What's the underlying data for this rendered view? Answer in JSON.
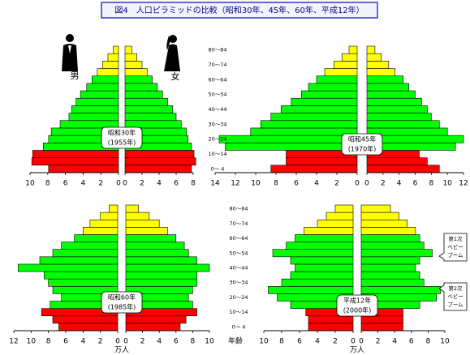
{
  "title": "図4　人口ピラミッドの比較（昭和30年、45年、60年、平成12年）",
  "chart_data": [
    {
      "type": "pyramid",
      "era_label": [
        "昭和30年",
        "(1955年)"
      ],
      "male_label": "男",
      "female_label": "女",
      "bar_colors": [
        "#ff0000",
        "#ff0000",
        "#ff0000",
        "#00ff00",
        "#00ff00",
        "#00ff00",
        "#00ff00",
        "#00ff00",
        "#00ff00",
        "#00ff00",
        "#00ff00",
        "#00ff00",
        "#00ff00",
        "#ffff00",
        "#ffff00",
        "#ffff00",
        "#ffff00"
      ],
      "male": {
        "values": [
          7.9,
          9.8,
          9.7,
          8.5,
          7.9,
          7.6,
          6.6,
          5.6,
          5.3,
          4.8,
          4.3,
          3.6,
          3.0,
          2.4,
          1.8,
          1.2,
          0.6
        ],
        "xlim": [
          0,
          10
        ],
        "xticks": [
          10,
          8,
          6,
          4,
          2,
          0
        ]
      },
      "female": {
        "values": [
          7.8,
          8.3,
          8.1,
          7.8,
          7.4,
          7.2,
          6.6,
          6.0,
          5.6,
          5.0,
          4.4,
          3.8,
          3.2,
          2.6,
          2.0,
          1.4,
          0.8
        ],
        "xlim": [
          0,
          8
        ],
        "xticks": [
          0,
          2,
          4,
          6,
          8
        ]
      }
    },
    {
      "type": "pyramid",
      "era_label": [
        "昭和45年",
        "(1970年)"
      ],
      "categories": [
        "0～ 4",
        null,
        "10～14",
        null,
        "20～24",
        null,
        "30～34",
        null,
        "40～44",
        null,
        "50～54",
        null,
        "60～64",
        null,
        "70～74",
        null,
        "80～84"
      ],
      "bar_colors": [
        "#ff0000",
        "#ff0000",
        "#ff0000",
        "#00ff00",
        "#00ff00",
        "#00ff00",
        "#00ff00",
        "#00ff00",
        "#00ff00",
        "#00ff00",
        "#00ff00",
        "#00ff00",
        "#00ff00",
        "#ffff00",
        "#ffff00",
        "#ffff00",
        "#ffff00"
      ],
      "male": {
        "values": [
          8.5,
          7.0,
          7.0,
          13.0,
          13.6,
          10.5,
          9.5,
          8.5,
          7.5,
          6.5,
          5.5,
          4.8,
          4.0,
          3.2,
          2.3,
          1.5,
          0.8
        ],
        "xlim": [
          0,
          14
        ],
        "xticks": [
          14,
          12,
          10,
          8,
          6,
          4,
          2,
          0
        ]
      },
      "female": {
        "values": [
          9.0,
          7.5,
          6.5,
          11.0,
          12.0,
          10.0,
          9.0,
          8.0,
          7.5,
          6.8,
          6.0,
          5.2,
          4.5,
          3.5,
          2.7,
          1.8,
          1.0
        ],
        "xlim": [
          0,
          12
        ],
        "xticks": [
          0,
          2,
          4,
          6,
          8,
          10,
          12
        ]
      }
    },
    {
      "type": "pyramid",
      "era_label": [
        "昭和60年",
        "(1985年)"
      ],
      "xlabel": "万人",
      "bar_colors": [
        "#ff0000",
        "#ff0000",
        "#ff0000",
        "#00ff00",
        "#00ff00",
        "#00ff00",
        "#00ff00",
        "#00ff00",
        "#00ff00",
        "#00ff00",
        "#00ff00",
        "#00ff00",
        "#00ff00",
        "#ffff00",
        "#ffff00",
        "#ffff00",
        "#ffff00"
      ],
      "male": {
        "values": [
          6.8,
          7.5,
          8.8,
          7.8,
          6.5,
          7.5,
          8.0,
          8.5,
          11.5,
          9.0,
          7.5,
          6.5,
          5.0,
          4.0,
          3.2,
          2.0,
          1.0
        ],
        "xlim": [
          0,
          12
        ],
        "xticks": [
          12,
          10,
          8,
          6,
          4,
          2,
          0
        ]
      },
      "female": {
        "values": [
          6.5,
          7.2,
          8.5,
          8.0,
          7.5,
          8.0,
          8.5,
          8.5,
          10.0,
          8.5,
          7.5,
          7.0,
          6.0,
          5.0,
          4.0,
          2.8,
          1.5
        ],
        "xlim": [
          0,
          10
        ],
        "xticks": [
          0,
          2,
          4,
          6,
          8,
          10
        ]
      }
    },
    {
      "type": "pyramid",
      "era_label": [
        "平成12年",
        "(2000年)"
      ],
      "xlabel": "万人",
      "age_label": "年齢",
      "categories": [
        "0～ 4",
        null,
        "10～14",
        null,
        "20～24",
        null,
        "30～34",
        null,
        "40～44",
        null,
        "50～54",
        null,
        "60～64",
        null,
        "70～74",
        null,
        "80～84"
      ],
      "annotations": [
        {
          "lines": [
            "第1次",
            "ベビー",
            "ブーム"
          ]
        },
        {
          "lines": [
            "第2次",
            "ベビー",
            "ブーム"
          ]
        }
      ],
      "bar_colors": [
        "#ff0000",
        "#ff0000",
        "#ff0000",
        "#00ff00",
        "#00ff00",
        "#00ff00",
        "#00ff00",
        "#00ff00",
        "#00ff00",
        "#00ff00",
        "#00ff00",
        "#00ff00",
        "#00ff00",
        "#ffff00",
        "#ffff00",
        "#ffff00",
        "#ffff00"
      ],
      "male": {
        "values": [
          5.0,
          5.0,
          5.3,
          7.0,
          8.5,
          9.5,
          8.0,
          7.0,
          6.5,
          7.0,
          9.0,
          7.5,
          6.5,
          5.5,
          4.0,
          3.0,
          2.0
        ],
        "xlim": [
          0,
          10
        ],
        "xticks": [
          10,
          8,
          6,
          4,
          2,
          0
        ]
      },
      "female": {
        "values": [
          5.0,
          5.0,
          5.0,
          7.0,
          9.0,
          9.5,
          7.5,
          7.0,
          6.5,
          7.0,
          8.5,
          7.5,
          7.0,
          6.5,
          5.5,
          4.5,
          3.5
        ],
        "xlim": [
          0,
          10
        ],
        "xticks": [
          0,
          2,
          4,
          6,
          8,
          10
        ]
      }
    }
  ]
}
